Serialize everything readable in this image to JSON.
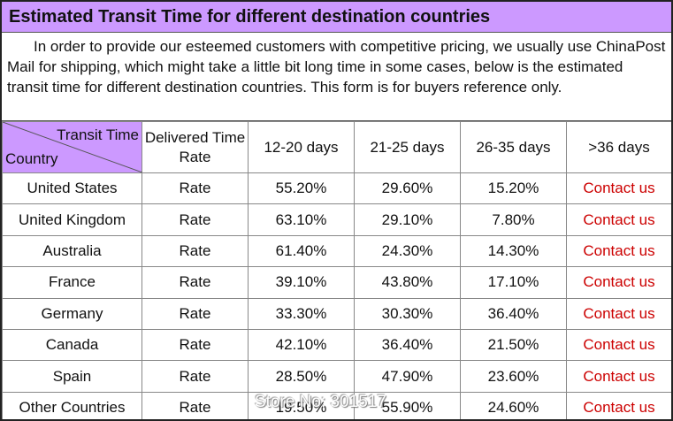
{
  "title": "Estimated Transit Time for different destination countries",
  "intro": "In order to provide our esteemed customers with competitive pricing, we usually use ChinaPost Mail for shipping, which might take a little bit long time in some cases, below is the estimated transit time for different destination countries. This form is for buyers reference only.",
  "table": {
    "corner": {
      "top": "Transit Time",
      "bottom": "Country"
    },
    "header": [
      "Delivered Time Rate",
      "12-20 days",
      "21-25 days",
      "26-35 days",
      ">36 days"
    ],
    "rows": [
      [
        "United States",
        "Rate",
        "55.20%",
        "29.60%",
        "15.20%",
        "Contact us"
      ],
      [
        "United Kingdom",
        "Rate",
        "63.10%",
        "29.10%",
        "7.80%",
        "Contact us"
      ],
      [
        "Australia",
        "Rate",
        "61.40%",
        "24.30%",
        "14.30%",
        "Contact us"
      ],
      [
        "France",
        "Rate",
        "39.10%",
        "43.80%",
        "17.10%",
        "Contact us"
      ],
      [
        "Germany",
        "Rate",
        "33.30%",
        "30.30%",
        "36.40%",
        "Contact us"
      ],
      [
        "Canada",
        "Rate",
        "42.10%",
        "36.40%",
        "21.50%",
        "Contact us"
      ],
      [
        "Spain",
        "Rate",
        "28.50%",
        "47.90%",
        "23.60%",
        "Contact us"
      ],
      [
        "Other Countries",
        "Rate",
        "19.50%",
        "55.90%",
        "24.60%",
        "Contact us"
      ]
    ]
  },
  "watermark": "Store No: 301517"
}
